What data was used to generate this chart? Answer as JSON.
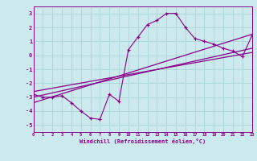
{
  "title": "",
  "xlabel": "Windchill (Refroidissement éolien,°C)",
  "xlim": [
    0,
    23
  ],
  "ylim": [
    -5.5,
    3.5
  ],
  "xticks": [
    0,
    1,
    2,
    3,
    4,
    5,
    6,
    7,
    8,
    9,
    10,
    11,
    12,
    13,
    14,
    15,
    16,
    17,
    18,
    19,
    20,
    21,
    22,
    23
  ],
  "yticks": [
    -5,
    -4,
    -3,
    -2,
    -1,
    0,
    1,
    2,
    3
  ],
  "bg_color": "#cce9ed",
  "grid_color": "#aad4d9",
  "line_color": "#880088",
  "data_x": [
    0,
    1,
    2,
    3,
    4,
    5,
    6,
    7,
    8,
    9,
    10,
    11,
    12,
    13,
    14,
    15,
    16,
    17,
    18,
    19,
    20,
    21,
    22,
    23
  ],
  "data_y": [
    -2.8,
    -3.0,
    -3.0,
    -2.9,
    -3.4,
    -4.0,
    -4.5,
    -4.6,
    -2.8,
    -3.3,
    0.4,
    1.3,
    2.2,
    2.5,
    3.0,
    3.0,
    2.0,
    1.2,
    1.0,
    0.8,
    0.5,
    0.3,
    -0.1,
    1.4
  ],
  "trend1_x": [
    0,
    23
  ],
  "trend1_y": [
    -3.0,
    0.5
  ],
  "trend2_x": [
    0,
    23
  ],
  "trend2_y": [
    -2.6,
    0.2
  ],
  "trend3_x": [
    0,
    23
  ],
  "trend3_y": [
    -3.4,
    1.5
  ]
}
